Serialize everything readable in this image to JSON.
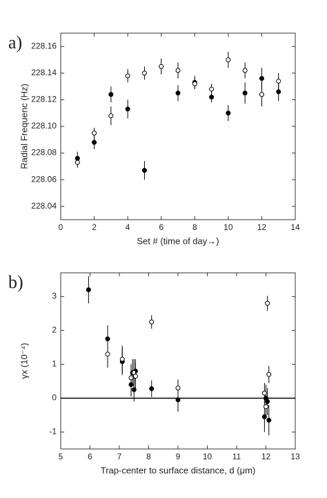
{
  "chart_data": [
    {
      "type": "scatter",
      "label": "a)",
      "xlabel": "Set #  (time of day→)",
      "ylabel": "Radial Frequenc (Hz)",
      "xlim": [
        0,
        14
      ],
      "xticks": [
        0,
        2,
        4,
        6,
        8,
        10,
        12,
        14
      ],
      "ylim": [
        228.03,
        228.17
      ],
      "yticks": [
        228.04,
        228.06,
        228.08,
        {
          "value": 228.1,
          "label": "228.10"
        },
        228.12,
        228.14,
        228.16
      ],
      "series": [
        {
          "color": "#000000",
          "filled": true,
          "x": [
            1,
            2,
            3,
            4,
            5,
            7,
            8,
            9,
            10,
            11,
            12,
            13
          ],
          "values": [
            228.076,
            228.088,
            228.124,
            228.113,
            228.067,
            228.125,
            228.133,
            228.122,
            228.11,
            228.125,
            228.136,
            228.126
          ],
          "errors": [
            0.005,
            0.005,
            0.006,
            0.007,
            0.007,
            0.006,
            0.005,
            0.004,
            0.006,
            0.008,
            0.008,
            0.007
          ]
        },
        {
          "color": "#000000",
          "filled": false,
          "x": [
            1,
            2,
            3,
            4,
            5,
            6,
            7,
            8,
            9,
            10,
            11,
            12,
            13
          ],
          "values": [
            228.073,
            228.095,
            228.108,
            228.138,
            228.14,
            228.145,
            228.142,
            228.132,
            228.128,
            228.15,
            228.142,
            228.124,
            228.134
          ],
          "errors": [
            0.004,
            0.004,
            0.007,
            0.005,
            0.005,
            0.006,
            0.006,
            0.004,
            0.004,
            0.006,
            0.006,
            0.009,
            0.006
          ]
        }
      ]
    },
    {
      "type": "scatter",
      "label": "b)",
      "xlabel": "Trap-center to surface distance, d (μm)",
      "ylabel": "γx (10⁻⁴)",
      "xlim": [
        5,
        13
      ],
      "xticks": [
        5,
        6,
        7,
        8,
        9,
        10,
        11,
        12,
        13
      ],
      "ylim": [
        -1.5,
        3.7
      ],
      "yticks": [
        -1,
        0,
        1,
        2,
        3
      ],
      "hline": 0,
      "series": [
        {
          "color": "#000000",
          "filled": true,
          "x": [
            5.95,
            6.6,
            7.1,
            7.4,
            7.45,
            7.5,
            7.55,
            8.1,
            9.0,
            11.95,
            12.0,
            12.05,
            12.1
          ],
          "values": [
            3.2,
            1.75,
            1.08,
            0.4,
            0.75,
            0.25,
            0.8,
            0.28,
            -0.05,
            -0.55,
            0.0,
            -0.1,
            -0.65
          ],
          "errors": [
            0.4,
            0.4,
            0.4,
            0.35,
            0.4,
            0.35,
            0.35,
            0.25,
            0.35,
            0.45,
            0.4,
            0.4,
            0.45
          ]
        },
        {
          "color": "#000000",
          "filled": false,
          "x": [
            6.6,
            7.1,
            7.4,
            7.5,
            7.55,
            8.1,
            9.0,
            11.95,
            12.0,
            12.05,
            12.1
          ],
          "values": [
            1.3,
            1.15,
            0.6,
            0.75,
            0.65,
            2.25,
            0.3,
            0.15,
            -0.25,
            2.8,
            0.7
          ],
          "errors": [
            0.4,
            0.4,
            0.4,
            0.4,
            0.4,
            0.2,
            0.25,
            0.3,
            0.3,
            0.22,
            0.25
          ]
        }
      ]
    }
  ]
}
